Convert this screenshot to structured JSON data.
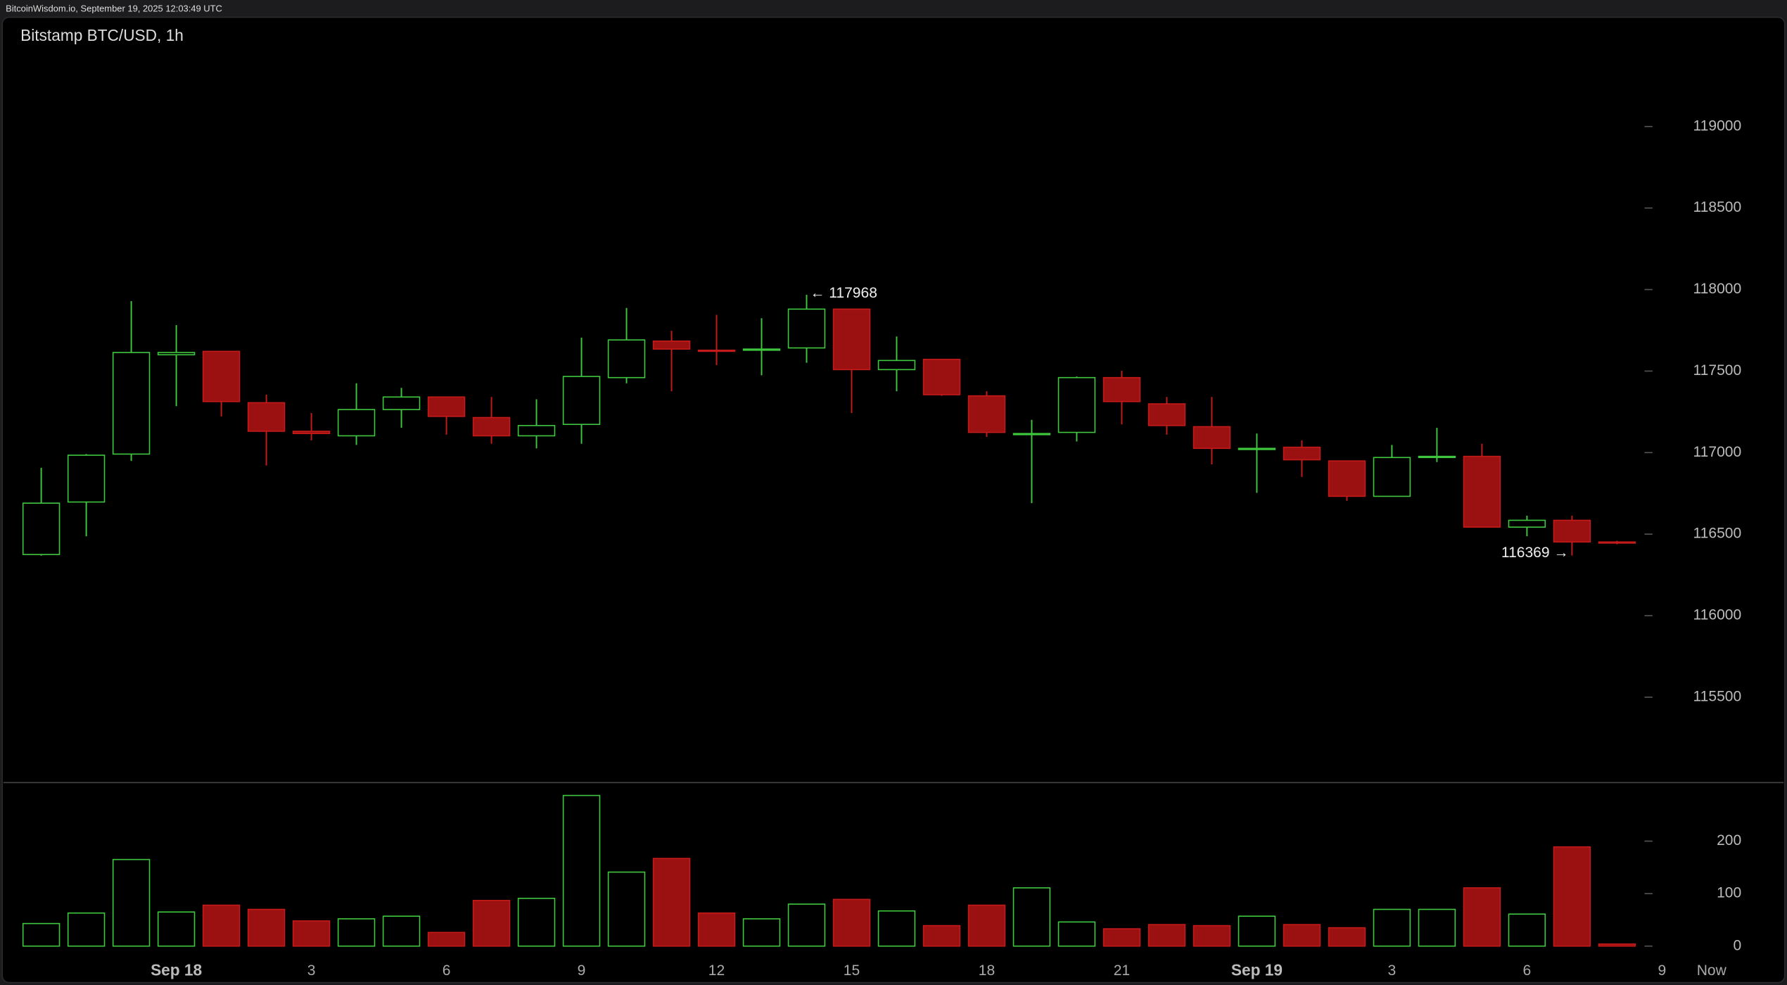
{
  "header": "BitcoinWisdom.io, September 19, 2025 12:03:49 UTC",
  "chart_data": [
    {
      "type": "candlestick",
      "title": "Bitstamp BTC/USD, 1h",
      "x": [
        0,
        1,
        2,
        3,
        4,
        5,
        6,
        7,
        8,
        9,
        10,
        11,
        12,
        13,
        14,
        15,
        16,
        17,
        18,
        19,
        20,
        21,
        22,
        23,
        24,
        25,
        26,
        27,
        28,
        29,
        30,
        31,
        32,
        33,
        34,
        35
      ],
      "open": [
        116375,
        116697,
        116991,
        117600,
        117621,
        117306,
        117131,
        117103,
        117264,
        117341,
        117215,
        117103,
        117173,
        117460,
        117684,
        117628,
        117628,
        117642,
        117880,
        117509,
        117572,
        117348,
        117110,
        117124,
        117460,
        117299,
        117159,
        117019,
        117033,
        116949,
        116732,
        116970,
        116977,
        116543,
        116585,
        116452
      ],
      "high": [
        116907,
        116991,
        117929,
        117782,
        117621,
        117355,
        117243,
        117425,
        117397,
        117341,
        117341,
        117327,
        117705,
        117887,
        117747,
        117845,
        117824,
        117968,
        117880,
        117712,
        117572,
        117376,
        117201,
        117467,
        117502,
        117341,
        117341,
        117117,
        117075,
        116949,
        117047,
        117152,
        117054,
        116613,
        116613,
        116459
      ],
      "low": [
        116368,
        116487,
        116949,
        117285,
        117222,
        116921,
        117075,
        117047,
        117152,
        117110,
        117054,
        117026,
        117054,
        117425,
        117376,
        117537,
        117474,
        117551,
        117243,
        117376,
        117348,
        117096,
        116690,
        117068,
        117173,
        117110,
        116928,
        116753,
        116851,
        116704,
        116732,
        116942,
        116543,
        116487,
        116369,
        116438
      ],
      "close": [
        116690,
        116984,
        117614,
        117614,
        117313,
        117131,
        117117,
        117264,
        117341,
        117222,
        117103,
        117166,
        117467,
        117691,
        117635,
        117621,
        117635,
        117880,
        117509,
        117565,
        117355,
        117124,
        117117,
        117460,
        117313,
        117166,
        117026,
        117026,
        116956,
        116732,
        116970,
        116977,
        116543,
        116585,
        116452,
        116445
      ],
      "up_color": "#3fc63f",
      "down_color": "#9b1010",
      "xlim": [
        -0.84,
        38.7
      ],
      "xticks": [
        {
          "value": 3,
          "label": "Sep 18"
        },
        {
          "value": 6,
          "label": "3"
        },
        {
          "value": 9,
          "label": "6"
        },
        {
          "value": 12,
          "label": "9"
        },
        {
          "value": 15,
          "label": "12"
        },
        {
          "value": 18,
          "label": "15"
        },
        {
          "value": 21,
          "label": "18"
        },
        {
          "value": 24,
          "label": "21"
        },
        {
          "value": 27,
          "label": "Sep 19"
        },
        {
          "value": 30,
          "label": "3"
        },
        {
          "value": 33,
          "label": "6"
        },
        {
          "value": 36,
          "label": "9"
        },
        {
          "value": 37.1,
          "label": "Now"
        }
      ],
      "ylim": [
        114980,
        119670
      ],
      "yticks": [
        115500,
        116000,
        116500,
        117000,
        117500,
        118000,
        118500,
        119000
      ],
      "annotations": [
        {
          "label": "← 117968",
          "x": 17,
          "value": 117968,
          "side": "right"
        },
        {
          "label": "116369 →",
          "x": 34,
          "value": 116369,
          "side": "left"
        }
      ]
    },
    {
      "type": "bar",
      "values": [
        43,
        63,
        165,
        65,
        78,
        70,
        48,
        52,
        57,
        26,
        87,
        91,
        287,
        141,
        167,
        63,
        52,
        80,
        89,
        67,
        39,
        78,
        111,
        46,
        33,
        41,
        39,
        57,
        41,
        35,
        70,
        70,
        111,
        61,
        189,
        4
      ],
      "ylim": [
        0,
        304
      ],
      "yticks": [
        0,
        100,
        200
      ]
    }
  ]
}
